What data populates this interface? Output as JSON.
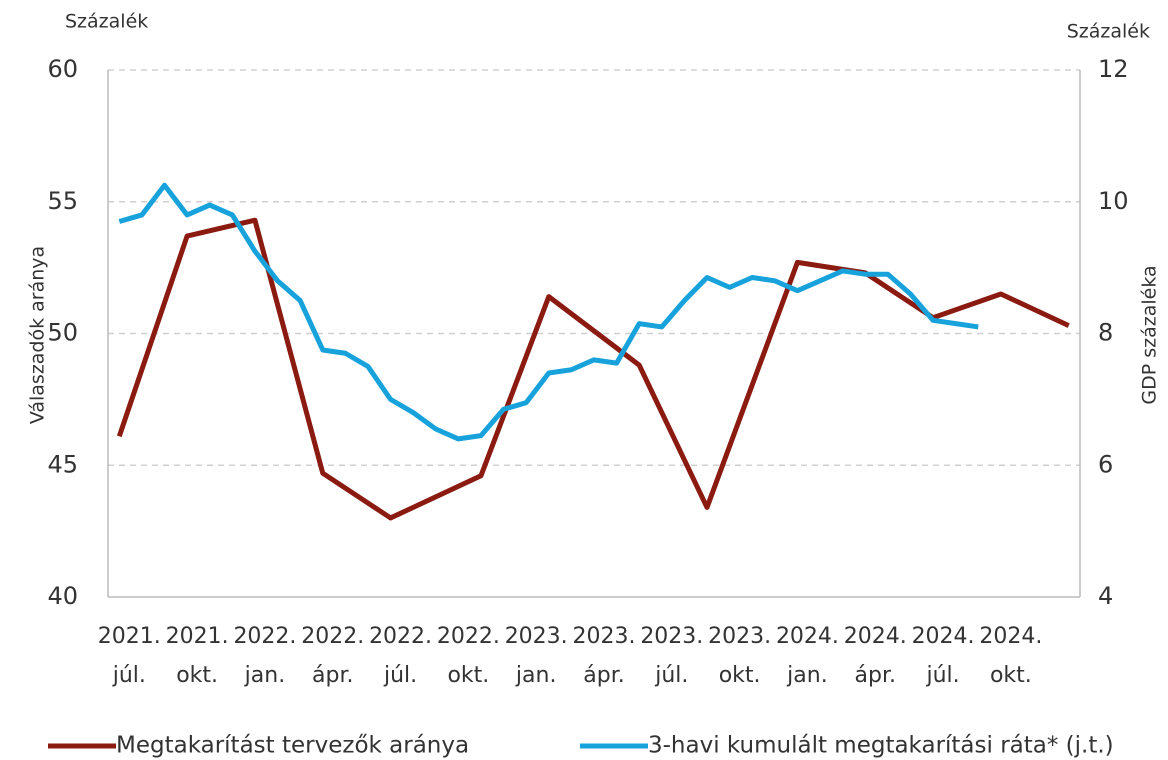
{
  "chart_data": {
    "type": "line",
    "left_unit": "Százalék",
    "right_unit": "Százalék",
    "ylabel": "Válaszadók aránya",
    "y2label": "GDP százaléka",
    "categories": [
      [
        "2021.",
        "júl."
      ],
      null,
      null,
      [
        "2021.",
        "okt."
      ],
      null,
      null,
      [
        "2022.",
        "jan."
      ],
      null,
      null,
      [
        "2022.",
        "ápr."
      ],
      null,
      null,
      [
        "2022.",
        "júl."
      ],
      null,
      null,
      [
        "2022.",
        "okt."
      ],
      null,
      null,
      [
        "2023.",
        "jan."
      ],
      null,
      null,
      [
        "2023.",
        "ápr."
      ],
      null,
      null,
      [
        "2023.",
        "júl."
      ],
      null,
      null,
      [
        "2023.",
        "okt."
      ],
      null,
      null,
      [
        "2024.",
        "jan."
      ],
      null,
      null,
      [
        "2024.",
        "ápr."
      ],
      null,
      null,
      [
        "2024.",
        "júl."
      ],
      null,
      null,
      [
        "2024.",
        "okt."
      ],
      null,
      null,
      null
    ],
    "series": [
      {
        "name": "Megtakarítást tervezők aránya",
        "color": "#8b1a10",
        "connect_gaps": true,
        "values": [
          46.1,
          null,
          null,
          53.7,
          null,
          null,
          54.3,
          null,
          null,
          44.7,
          null,
          null,
          43.0,
          null,
          null,
          null,
          44.6,
          null,
          null,
          51.4,
          null,
          null,
          null,
          48.8,
          null,
          null,
          43.4,
          null,
          null,
          null,
          52.7,
          null,
          null,
          52.3,
          null,
          null,
          50.6,
          null,
          null,
          51.5,
          null,
          null,
          50.3
        ]
      },
      {
        "name": "3-havi kumulált megtakarítási ráta* (j.t.)",
        "color": "#17a2dc",
        "axis": "y2",
        "values": [
          9.7,
          9.8,
          10.25,
          9.8,
          9.95,
          9.8,
          9.25,
          8.8,
          8.5,
          7.75,
          7.7,
          7.5,
          7.0,
          6.8,
          6.55,
          6.4,
          6.45,
          6.85,
          6.95,
          7.4,
          7.45,
          7.6,
          7.55,
          8.15,
          8.1,
          8.5,
          8.85,
          8.7,
          8.85,
          8.8,
          8.65,
          8.8,
          8.95,
          8.9,
          8.9,
          8.6,
          8.2,
          8.15,
          8.1,
          null,
          null,
          null,
          null
        ]
      }
    ],
    "ylim": [
      40,
      60
    ],
    "yticks": [
      40,
      45,
      50,
      55,
      60
    ],
    "y2lim": [
      4,
      12
    ],
    "y2ticks": [
      4,
      6,
      8,
      10,
      12
    ],
    "grid": true,
    "legend": "bottom"
  }
}
